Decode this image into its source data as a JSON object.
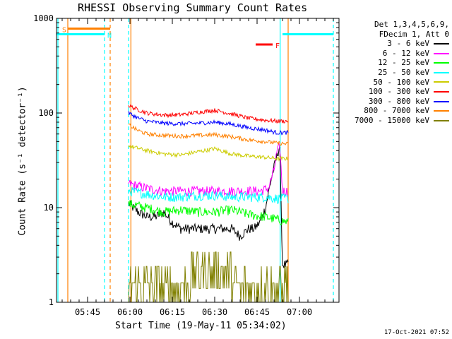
{
  "title": "RHESSI Observing Summary Count Rates",
  "footer_date": "17-Oct-2021 07:52",
  "legend_header": [
    "Det 1,3,4,5,6,9,",
    "FDecim 1, Att 0"
  ],
  "chart_data": {
    "type": "line",
    "title": "RHESSI Observing Summary Count Rates",
    "xlabel": "Start Time (19-May-11 05:34:02)",
    "ylabel": "Count Rate (s⁻¹ detector⁻¹)",
    "yscale": "log",
    "ylim": [
      1,
      1000
    ],
    "xlim_minutes": [
      34,
      134
    ],
    "x_ticks": [
      "05:45",
      "06:00",
      "06:15",
      "06:30",
      "06:45",
      "07:00"
    ],
    "y_ticks": [
      "1",
      "10",
      "100",
      "1000"
    ],
    "data_start": "05:59:30",
    "data_end": "06:56:00",
    "series": [
      {
        "name": "3 - 6 keV",
        "color": "#000000",
        "x": [
          "05:59:30",
          "06:03",
          "06:06",
          "06:09",
          "06:12",
          "06:15",
          "06:18",
          "06:21",
          "06:24",
          "06:27",
          "06:30",
          "06:33",
          "06:36",
          "06:39",
          "06:42",
          "06:44",
          "06:46",
          "06:48",
          "06:50",
          "06:52",
          "06:53",
          "06:54",
          "06:55",
          "06:56"
        ],
        "values": [
          11,
          9,
          8,
          8,
          9,
          7,
          6,
          6,
          6,
          6,
          6,
          6,
          6,
          5,
          6,
          6,
          7,
          10,
          20,
          35,
          45,
          2.5,
          2.5,
          2.5
        ]
      },
      {
        "name": "6 - 12 keV",
        "color": "#ff00ff",
        "x": [
          "05:59:30",
          "06:06",
          "06:12",
          "06:18",
          "06:24",
          "06:30",
          "06:36",
          "06:42",
          "06:46",
          "06:49",
          "06:51",
          "06:52",
          "06:53",
          "06:54",
          "06:56"
        ],
        "values": [
          18,
          16,
          15,
          15,
          15,
          15,
          15,
          15,
          15,
          16,
          25,
          38,
          45,
          15,
          15
        ]
      },
      {
        "name": "12 - 25 keV",
        "color": "#00ff00",
        "x": [
          "05:59:30",
          "06:06",
          "06:12",
          "06:18",
          "06:24",
          "06:30",
          "06:36",
          "06:42",
          "06:48",
          "06:52",
          "06:56"
        ],
        "values": [
          11,
          10,
          9,
          9.5,
          9,
          9,
          9.5,
          8.5,
          8,
          7.5,
          7
        ]
      },
      {
        "name": "25 - 50 keV",
        "color": "#00ffff",
        "x": [
          "05:59:30",
          "06:06",
          "06:12",
          "06:18",
          "06:24",
          "06:30",
          "06:36",
          "06:42",
          "06:48",
          "06:52",
          "06:56"
        ],
        "values": [
          15,
          14,
          13,
          13,
          13.5,
          13.5,
          13,
          13,
          13,
          12.5,
          12.5
        ]
      },
      {
        "name": "50 - 100 keV",
        "color": "#cccc00",
        "x": [
          "05:59:30",
          "06:06",
          "06:12",
          "06:18",
          "06:24",
          "06:30",
          "06:36",
          "06:42",
          "06:48",
          "06:52",
          "06:56"
        ],
        "values": [
          45,
          40,
          37,
          36,
          39,
          42,
          37,
          35,
          34,
          33,
          33
        ]
      },
      {
        "name": "100 - 300 keV",
        "color": "#ff0000",
        "x": [
          "05:59:30",
          "06:03",
          "06:06",
          "06:12",
          "06:18",
          "06:24",
          "06:30",
          "06:36",
          "06:42",
          "06:48",
          "06:52",
          "06:56"
        ],
        "values": [
          120,
          108,
          100,
          95,
          96,
          102,
          107,
          98,
          88,
          84,
          82,
          82
        ]
      },
      {
        "name": "300 - 800 keV",
        "color": "#0000ff",
        "x": [
          "05:59:30",
          "06:03",
          "06:06",
          "06:12",
          "06:18",
          "06:24",
          "06:30",
          "06:36",
          "06:42",
          "06:48",
          "06:52",
          "06:56"
        ],
        "values": [
          100,
          88,
          82,
          78,
          77,
          78,
          80,
          76,
          70,
          66,
          62,
          62
        ]
      },
      {
        "name": "800 - 7000 keV",
        "color": "#ff8000",
        "x": [
          "05:59:30",
          "06:03",
          "06:06",
          "06:12",
          "06:18",
          "06:24",
          "06:30",
          "06:36",
          "06:42",
          "06:48",
          "06:52",
          "06:56"
        ],
        "values": [
          75,
          65,
          60,
          58,
          57,
          58,
          59,
          56,
          52,
          50,
          48,
          47
        ]
      },
      {
        "name": "7000 - 15000 keV",
        "color": "#808000",
        "x": [
          "05:59:30",
          "06:06",
          "06:12",
          "06:18",
          "06:24",
          "06:30",
          "06:36",
          "06:42",
          "06:48",
          "06:52",
          "06:56"
        ],
        "values": [
          1.5,
          1.5,
          1.5,
          1.5,
          2.5,
          2.5,
          2,
          2,
          1.5,
          1.5,
          1.5
        ]
      }
    ],
    "intervals": [
      {
        "label": "S",
        "color": "#ff8000",
        "start": "05:38",
        "end": "05:53",
        "level": 780
      },
      {
        "label": "N",
        "color": "#00ffff",
        "start": "05:34",
        "end": "05:51",
        "level": 680
      },
      {
        "label": "F",
        "color": "#ff0000",
        "start": "06:44:30",
        "end": "06:50:30",
        "level": 530
      },
      {
        "label": "",
        "color": "#00ffff",
        "start": "06:54",
        "end": "07:12",
        "level": 680
      }
    ],
    "markers": [
      {
        "label": "night_start_1",
        "time": "05:34:30",
        "color": "#00ffff",
        "style": "solid"
      },
      {
        "label": "saa_1",
        "time": "05:38",
        "color": "#ff8000",
        "style": "solid"
      },
      {
        "label": "night_end_1",
        "time": "05:51",
        "color": "#00ffff",
        "style": "dashed"
      },
      {
        "label": "saa_end_1",
        "time": "05:53",
        "color": "#ff8000",
        "style": "dashed"
      },
      {
        "label": "attn",
        "time": "05:59:30",
        "color": "#00ffff",
        "style": "dashed"
      },
      {
        "label": "data_start",
        "time": "06:00:20",
        "color": "#ff8000",
        "style": "solid"
      },
      {
        "label": "night_start_2",
        "time": "06:53:10",
        "color": "#00ffff",
        "style": "solid"
      },
      {
        "label": "saa_2",
        "time": "06:56:00",
        "color": "#ff8000",
        "style": "solid"
      },
      {
        "label": "night_end_2",
        "time": "07:12",
        "color": "#00ffff",
        "style": "dashed"
      }
    ]
  }
}
